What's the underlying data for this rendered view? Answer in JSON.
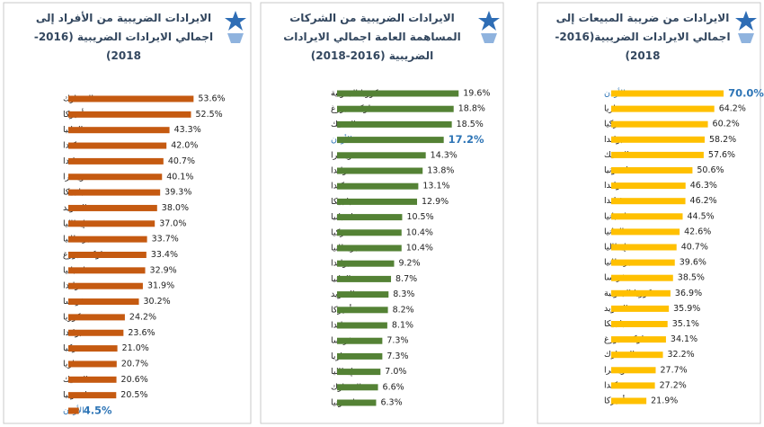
{
  "chart_data": [
    {
      "type": "bar",
      "orientation": "horizontal",
      "title": "الايرادات الضريبية من الأفراد إلى اجمالي الايرادات الضريبية (2016-2018)",
      "categories": [
        "الدنمارك",
        "أميركا",
        "المانيا",
        "كندا",
        "فنلندا",
        "سويسرا",
        "بلجيكا",
        "السويد",
        "إيطاليا",
        "بريطانيا",
        "لوكسمبورغ",
        "اسبانيا",
        "هولندا",
        "فرنسا",
        "كوريا",
        "بولندا",
        "تركيا",
        "هنغاريا",
        "التشيك",
        "استونيا",
        "الأردن"
      ],
      "values": [
        53.6,
        52.5,
        43.3,
        42.0,
        40.7,
        40.1,
        39.3,
        38.0,
        37.0,
        33.7,
        33.4,
        32.9,
        31.9,
        30.2,
        24.2,
        23.6,
        21.0,
        20.7,
        20.6,
        20.5,
        4.5
      ],
      "value_labels": [
        "53.6%",
        "52.5%",
        "43.3%",
        "42.0%",
        "40.7%",
        "40.1%",
        "39.3%",
        "38.0%",
        "37.0%",
        "33.7%",
        "33.4%",
        "32.9%",
        "31.9%",
        "30.2%",
        "24.2%",
        "23.6%",
        "21.0%",
        "20.7%",
        "20.6%",
        "20.5%",
        "4.5%"
      ],
      "color": "#c55a11",
      "highlight_index": 20,
      "highlight_color": "#2e75b6",
      "xlim": [
        0,
        55
      ]
    },
    {
      "type": "bar",
      "orientation": "horizontal",
      "title": "الايرادات الضريبية من الشركات المساهمة العامة اجمالي الايرادات الضريبية (2016-2018)",
      "categories": [
        "كوريا الجنوبية",
        "لوكسمبورغ",
        "التشيك",
        "الأردن",
        "سويسرا",
        "هولندا",
        "كندا",
        "بلجيكا",
        "اسبانيا",
        "تركيا",
        "بريطانيا",
        "بولندا",
        "المانيا",
        "السويد",
        "أميركا",
        "فنلندا",
        "فرنسا",
        "هنغاريا",
        "إيطاليا",
        "الدنمارك",
        "استونيا"
      ],
      "values": [
        19.6,
        18.8,
        18.5,
        17.2,
        14.3,
        13.8,
        13.1,
        12.9,
        10.5,
        10.4,
        10.4,
        9.2,
        8.7,
        8.3,
        8.2,
        8.1,
        7.3,
        7.3,
        7.0,
        6.6,
        6.3
      ],
      "value_labels": [
        "19.6%",
        "18.8%",
        "18.5%",
        "17.2%",
        "14.3%",
        "13.8%",
        "13.1%",
        "12.9%",
        "10.5%",
        "10.4%",
        "10.4%",
        "9.2%",
        "8.7%",
        "8.3%",
        "8.2%",
        "8.1%",
        "7.3%",
        "7.3%",
        "7.0%",
        "6.6%",
        "6.3%"
      ],
      "color": "#548235",
      "highlight_index": 3,
      "highlight_color": "#2e75b6",
      "xlim": [
        0,
        20
      ]
    },
    {
      "type": "bar",
      "orientation": "horizontal",
      "title": "الايرادات من ضريبة المبيعات إلى اجمالي الايرادات الضريبية(2016-2018)",
      "categories": [
        "الأردن",
        "هنغاريا",
        "تركيا",
        "بولندا",
        "التشيك",
        "استونيا",
        "هولندا",
        "فنلندا",
        "اسبانيا",
        "المانيا",
        "إيطاليا",
        "بريطانيا",
        "فرنسا",
        "كوريا الجنوبية",
        "السويد",
        "بلجيكا",
        "لوكسمبورغ",
        "الدنمارك",
        "سويسرا",
        "كندا",
        "أميركا"
      ],
      "values": [
        70.0,
        64.2,
        60.2,
        58.2,
        57.6,
        50.6,
        46.3,
        46.2,
        44.5,
        42.6,
        40.7,
        39.6,
        38.5,
        36.9,
        35.9,
        35.1,
        34.1,
        32.2,
        27.7,
        27.2,
        21.9
      ],
      "value_labels": [
        "70.0%",
        "64.2%",
        "60.2%",
        "58.2%",
        "57.6%",
        "50.6%",
        "46.3%",
        "46.2%",
        "44.5%",
        "42.6%",
        "40.7%",
        "39.6%",
        "38.5%",
        "36.9%",
        "35.9%",
        "35.1%",
        "34.1%",
        "32.2%",
        "27.7%",
        "27.2%",
        "21.9%"
      ],
      "color": "#ffc000",
      "highlight_index": 0,
      "highlight_color": "#2e75b6",
      "xlim": [
        0,
        75
      ]
    }
  ]
}
